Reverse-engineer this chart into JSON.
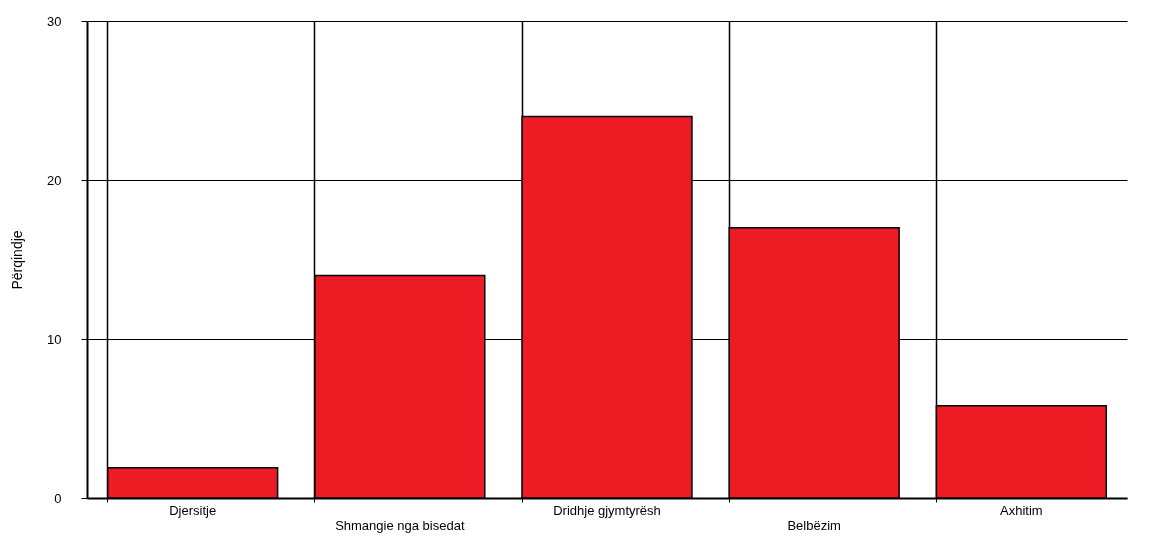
{
  "chart_data": {
    "type": "bar",
    "ylabel": "Përqindje",
    "categories": [
      "Djersitje",
      "Shmangie nga bisedat",
      "Dridhje gjymtyrësh",
      "Belbëzim",
      "Axhitim"
    ],
    "values": [
      1.9,
      14,
      24,
      17,
      5.8
    ],
    "color": "#ed1c24",
    "ylim": [
      0,
      30
    ],
    "yticks": [
      0,
      10,
      20,
      30
    ],
    "grid": true
  }
}
